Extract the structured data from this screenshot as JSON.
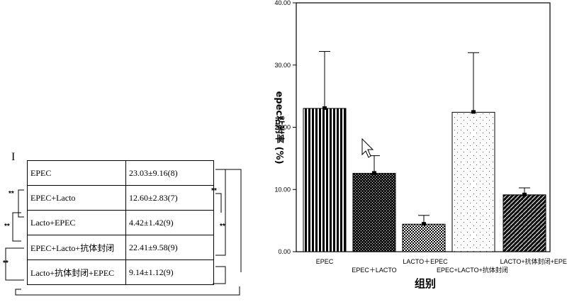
{
  "table": {
    "rows": [
      {
        "group": "EPEC",
        "value": "23.03±9.16(8)"
      },
      {
        "group": "EPEC+Lacto",
        "value": "12.60±2.83(7)"
      },
      {
        "group": "Lacto+EPEC",
        "value": "4.42±1.42(9)"
      },
      {
        "group": "EPEC+Lacto+抗体封闭",
        "value": "22.41±9.58(9)"
      },
      {
        "group": "Lacto+抗体封闭+EPEC",
        "value": "9.14±1.12(9)"
      }
    ],
    "sig_marks": [
      "**",
      "**",
      "**",
      "**",
      "**"
    ],
    "top_mark": "I"
  },
  "chart_data": {
    "type": "bar",
    "categories": [
      "EPEC",
      "EPEC＋LACTO",
      "LACTO＋EPEC",
      "EPEC+LACTO+抗体封闭",
      "LACTO+抗体封闭+EPEC"
    ],
    "values": [
      23.03,
      12.6,
      4.42,
      22.41,
      9.14
    ],
    "errors": [
      9.16,
      2.83,
      1.42,
      9.58,
      1.12
    ],
    "patterns": [
      "vstripes",
      "dense",
      "checker",
      "sparse-dots",
      "diagonal"
    ],
    "ylim": [
      0,
      40
    ],
    "yticks": [
      "0.00",
      "10.00",
      "20.00",
      "30.00",
      "40.00"
    ],
    "ylabel": "epec粘附率 (%)",
    "xlabel": "组别",
    "grid": false
  }
}
